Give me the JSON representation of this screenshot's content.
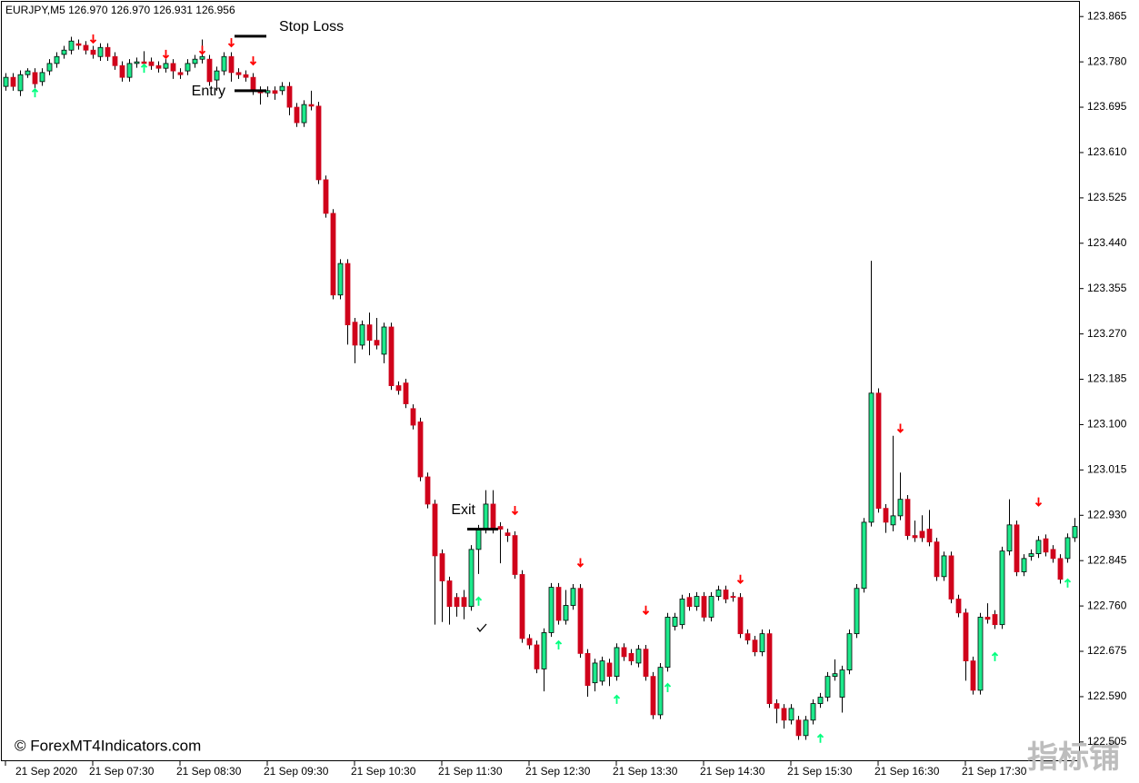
{
  "chart_data": {
    "type": "candlestick",
    "header": "EURJPY,M5  126.970 126.970 126.931 126.956",
    "watermark": "© ForexMT4Indicators.com",
    "watermark_cn": "指标铺",
    "up_color": "#1de98b",
    "down_color": "#d0021b",
    "wick_color": "#000000",
    "buy_color": "#00ff7f",
    "sell_color": "#ff0000",
    "level_color": "#000000",
    "ylim": [
      122.469,
      123.896
    ],
    "yticks": [
      123.865,
      {
        "value": 123.78,
        "label": "123.780"
      },
      123.695,
      {
        "value": 123.61,
        "label": "123.610"
      },
      123.525,
      {
        "value": 123.44,
        "label": "123.440"
      },
      123.355,
      {
        "value": 123.27,
        "label": "123.270"
      },
      123.185,
      {
        "value": 123.1,
        "label": "123.100"
      },
      123.015,
      {
        "value": 122.93,
        "label": "122.930"
      },
      122.845,
      {
        "value": 122.76,
        "label": "122.760"
      },
      122.675,
      {
        "value": 122.59,
        "label": "122.590"
      },
      122.505
    ],
    "xticks": [
      {
        "value": 0,
        "label": "21 Sep 2020"
      },
      {
        "value": 12,
        "label": "21 Sep 07:30"
      },
      {
        "value": 24,
        "label": "21 Sep 08:30"
      },
      {
        "value": 36,
        "label": "21 Sep 09:30"
      },
      {
        "value": 48,
        "label": "21 Sep 10:30"
      },
      {
        "value": 60,
        "label": "21 Sep 11:30"
      },
      {
        "value": 72,
        "label": "21 Sep 12:30"
      },
      {
        "value": 84,
        "label": "21 Sep 13:30"
      },
      {
        "value": 96,
        "label": "21 Sep 14:30"
      },
      {
        "value": 108,
        "label": "21 Sep 15:30"
      },
      {
        "value": 120,
        "label": "21 Sep 16:30"
      },
      {
        "value": 132,
        "label": "21 Sep 17:30"
      }
    ],
    "ohlc": [
      [
        123.734,
        123.759,
        123.726,
        123.751
      ],
      [
        123.751,
        123.759,
        123.726,
        123.734
      ],
      [
        123.726,
        123.764,
        123.716,
        123.756
      ],
      [
        123.756,
        123.768,
        123.75,
        123.763
      ],
      [
        123.76,
        123.768,
        123.731,
        123.739
      ],
      [
        123.743,
        123.768,
        123.735,
        123.76
      ],
      [
        123.763,
        123.785,
        123.755,
        123.777
      ],
      [
        123.777,
        123.798,
        123.769,
        123.79
      ],
      [
        123.794,
        123.81,
        123.786,
        123.802
      ],
      [
        123.802,
        123.827,
        123.794,
        123.819
      ],
      [
        123.814,
        123.822,
        123.803,
        123.811
      ],
      [
        123.811,
        123.819,
        123.794,
        123.802
      ],
      [
        123.802,
        123.81,
        123.786,
        123.794
      ],
      [
        123.79,
        123.815,
        123.782,
        123.807
      ],
      [
        123.807,
        123.815,
        123.782,
        123.79
      ],
      [
        123.79,
        123.798,
        123.765,
        123.773
      ],
      [
        123.773,
        123.781,
        123.743,
        123.751
      ],
      [
        123.751,
        123.785,
        123.743,
        123.777
      ],
      [
        123.777,
        123.788,
        123.769,
        123.78
      ],
      [
        123.78,
        123.8,
        123.769,
        123.777
      ],
      [
        123.78,
        123.788,
        123.765,
        123.773
      ],
      [
        123.773,
        123.781,
        123.76,
        123.768
      ],
      [
        123.768,
        123.785,
        123.76,
        123.777
      ],
      [
        123.777,
        123.785,
        123.748,
        123.763
      ],
      [
        123.76,
        123.768,
        123.748,
        123.756
      ],
      [
        123.763,
        123.785,
        123.755,
        123.777
      ],
      [
        123.777,
        123.793,
        123.769,
        123.785
      ],
      [
        123.785,
        123.822,
        123.777,
        123.79
      ],
      [
        123.785,
        123.793,
        123.735,
        123.743
      ],
      [
        123.746,
        123.771,
        123.726,
        123.763
      ],
      [
        123.763,
        123.798,
        123.755,
        123.79
      ],
      [
        123.79,
        123.798,
        123.743,
        123.76
      ],
      [
        123.76,
        123.768,
        123.748,
        123.756
      ],
      [
        123.756,
        123.764,
        123.743,
        123.751
      ],
      [
        123.751,
        123.759,
        123.718,
        123.726
      ],
      [
        123.726,
        123.734,
        123.7,
        123.722
      ],
      [
        123.722,
        123.734,
        123.714,
        123.726
      ],
      [
        123.726,
        123.734,
        123.709,
        123.721
      ],
      [
        123.726,
        123.742,
        123.718,
        123.734
      ],
      [
        123.734,
        123.742,
        123.68,
        123.695
      ],
      [
        123.695,
        123.703,
        123.658,
        123.666
      ],
      [
        123.666,
        123.708,
        123.658,
        123.7
      ],
      [
        123.7,
        123.726,
        123.689,
        123.697
      ],
      [
        123.697,
        123.705,
        123.551,
        123.559
      ],
      [
        123.559,
        123.567,
        123.488,
        123.496
      ],
      [
        123.496,
        123.504,
        123.335,
        123.343
      ],
      [
        123.343,
        123.41,
        123.335,
        123.402
      ],
      [
        123.402,
        123.41,
        123.25,
        123.287
      ],
      [
        123.292,
        123.3,
        123.215,
        123.249
      ],
      [
        123.249,
        123.295,
        123.241,
        123.287
      ],
      [
        123.287,
        123.31,
        123.23,
        123.258
      ],
      [
        123.258,
        123.3,
        123.241,
        123.249
      ],
      [
        123.232,
        123.291,
        123.215,
        123.283
      ],
      [
        123.283,
        123.291,
        123.165,
        123.173
      ],
      [
        123.173,
        123.181,
        123.156,
        123.164
      ],
      [
        123.178,
        123.186,
        123.131,
        123.139
      ],
      [
        123.13,
        123.138,
        123.091,
        123.099
      ],
      [
        123.105,
        123.113,
        122.994,
        123.002
      ],
      [
        123.002,
        123.01,
        122.943,
        122.951
      ],
      [
        122.951,
        122.959,
        122.725,
        122.854
      ],
      [
        122.858,
        122.866,
        122.73,
        122.807
      ],
      [
        122.807,
        122.815,
        122.725,
        122.759
      ],
      [
        122.776,
        122.784,
        122.74,
        122.759
      ],
      [
        122.776,
        122.79,
        122.735,
        122.759
      ],
      [
        122.759,
        122.874,
        122.751,
        122.866
      ],
      [
        122.866,
        122.912,
        122.82,
        122.904
      ],
      [
        122.904,
        122.977,
        122.896,
        122.951
      ],
      [
        122.951,
        122.977,
        122.896,
        122.904
      ],
      [
        122.909,
        122.917,
        122.84,
        122.904
      ],
      [
        122.897,
        122.905,
        122.88,
        122.892
      ],
      [
        122.892,
        122.9,
        122.811,
        122.819
      ],
      [
        122.819,
        122.827,
        122.691,
        122.699
      ],
      [
        122.699,
        122.707,
        122.679,
        122.687
      ],
      [
        122.687,
        122.695,
        122.634,
        122.642
      ],
      [
        122.642,
        122.718,
        122.6,
        122.71
      ],
      [
        122.71,
        122.803,
        122.702,
        122.795
      ],
      [
        122.795,
        122.803,
        122.725,
        122.733
      ],
      [
        122.733,
        122.79,
        122.725,
        122.761
      ],
      [
        122.761,
        122.801,
        122.753,
        122.793
      ],
      [
        122.793,
        122.801,
        122.663,
        122.671
      ],
      [
        122.671,
        122.679,
        122.59,
        122.611
      ],
      [
        122.616,
        122.661,
        122.6,
        122.653
      ],
      [
        122.619,
        122.665,
        122.611,
        122.657
      ],
      [
        122.653,
        122.661,
        122.61,
        122.628
      ],
      [
        122.628,
        122.69,
        122.62,
        122.682
      ],
      [
        122.682,
        122.69,
        122.657,
        122.665
      ],
      [
        122.671,
        122.679,
        122.649,
        122.657
      ],
      [
        122.653,
        122.687,
        122.645,
        122.679
      ],
      [
        122.679,
        122.687,
        122.62,
        122.628
      ],
      [
        122.628,
        122.636,
        122.548,
        122.556
      ],
      [
        122.556,
        122.653,
        122.548,
        122.645
      ],
      [
        122.645,
        122.747,
        122.637,
        122.739
      ],
      [
        122.722,
        122.747,
        122.714,
        122.739
      ],
      [
        122.725,
        122.781,
        122.717,
        122.773
      ],
      [
        122.776,
        122.784,
        122.751,
        122.759
      ],
      [
        122.759,
        122.786,
        122.751,
        122.778
      ],
      [
        122.778,
        122.786,
        122.731,
        122.739
      ],
      [
        122.739,
        122.786,
        122.731,
        122.778
      ],
      [
        122.778,
        122.798,
        122.77,
        122.79
      ],
      [
        122.79,
        122.798,
        122.765,
        122.773
      ],
      [
        122.778,
        122.786,
        122.768,
        122.776
      ],
      [
        122.776,
        122.784,
        122.7,
        122.708
      ],
      [
        122.708,
        122.716,
        122.688,
        122.696
      ],
      [
        122.696,
        122.704,
        122.666,
        122.674
      ],
      [
        122.674,
        122.716,
        122.666,
        122.708
      ],
      [
        122.708,
        122.716,
        122.569,
        122.577
      ],
      [
        122.577,
        122.585,
        122.54,
        122.568
      ],
      [
        122.568,
        122.576,
        122.53,
        122.546
      ],
      [
        122.546,
        122.576,
        122.538,
        122.568
      ],
      [
        122.546,
        122.554,
        122.509,
        122.517
      ],
      [
        122.517,
        122.554,
        122.509,
        122.546
      ],
      [
        122.546,
        122.585,
        122.538,
        122.577
      ],
      [
        122.577,
        122.597,
        122.569,
        122.589
      ],
      [
        122.589,
        122.636,
        122.581,
        122.628
      ],
      [
        122.628,
        122.66,
        122.62,
        122.633
      ],
      [
        122.589,
        122.648,
        122.56,
        122.64
      ],
      [
        122.64,
        122.716,
        122.632,
        122.708
      ],
      [
        122.708,
        122.801,
        122.7,
        122.793
      ],
      [
        122.793,
        122.925,
        122.785,
        122.917
      ],
      [
        122.917,
        123.407,
        122.909,
        123.159
      ],
      [
        123.159,
        123.168,
        122.935,
        122.943
      ],
      [
        122.943,
        122.951,
        122.897,
        122.917
      ],
      [
        122.912,
        123.079,
        122.9,
        122.929
      ],
      [
        122.929,
        123.01,
        122.921,
        122.96
      ],
      [
        122.96,
        122.968,
        122.884,
        122.892
      ],
      [
        122.892,
        122.92,
        122.88,
        122.888
      ],
      [
        122.9,
        122.93,
        122.88,
        122.888
      ],
      [
        122.904,
        122.94,
        122.872,
        122.88
      ],
      [
        122.88,
        122.888,
        122.807,
        122.815
      ],
      [
        122.815,
        122.862,
        122.807,
        122.854
      ],
      [
        122.854,
        122.862,
        122.765,
        122.773
      ],
      [
        122.773,
        122.781,
        122.739,
        122.747
      ],
      [
        122.747,
        122.755,
        122.62,
        122.657
      ],
      [
        122.657,
        122.665,
        122.594,
        122.602
      ],
      [
        122.602,
        122.747,
        122.594,
        122.739
      ],
      [
        122.739,
        122.765,
        122.727,
        122.735
      ],
      [
        122.744,
        122.752,
        122.717,
        122.725
      ],
      [
        122.725,
        122.871,
        122.717,
        122.863
      ],
      [
        122.863,
        122.96,
        122.855,
        122.912
      ],
      [
        122.912,
        122.92,
        122.816,
        122.824
      ],
      [
        122.824,
        122.857,
        122.816,
        122.849
      ],
      [
        122.853,
        122.866,
        122.845,
        122.858
      ],
      [
        122.858,
        122.891,
        122.85,
        122.883
      ],
      [
        122.886,
        122.894,
        122.853,
        122.861
      ],
      [
        122.866,
        122.874,
        122.841,
        122.849
      ],
      [
        122.849,
        122.857,
        122.802,
        122.81
      ],
      [
        122.849,
        122.896,
        122.841,
        122.888
      ],
      [
        122.888,
        122.925,
        122.88,
        122.909
      ]
    ],
    "sell_signals": [
      {
        "index": 12,
        "price": 123.823
      },
      {
        "index": 22,
        "price": 123.794
      },
      {
        "index": 27,
        "price": 123.802
      },
      {
        "index": 31,
        "price": 123.816
      },
      {
        "index": 34,
        "price": 123.782
      },
      {
        "index": 70,
        "price": 122.939
      },
      {
        "index": 79,
        "price": 122.841
      },
      {
        "index": 88,
        "price": 122.752
      },
      {
        "index": 101,
        "price": 122.81
      },
      {
        "index": 123,
        "price": 123.093
      },
      {
        "index": 142,
        "price": 122.955
      }
    ],
    "buy_signals": [
      {
        "index": 4,
        "price": 123.722
      },
      {
        "index": 19,
        "price": 123.768
      },
      {
        "index": 65,
        "price": 122.769
      },
      {
        "index": 76,
        "price": 122.687
      },
      {
        "index": 84,
        "price": 122.585
      },
      {
        "index": 91,
        "price": 122.607
      },
      {
        "index": 112,
        "price": 122.512
      },
      {
        "index": 136,
        "price": 122.665
      },
      {
        "index": 146,
        "price": 122.803
      }
    ],
    "levels": [
      {
        "label": "Stop Loss",
        "price": 123.828
      },
      {
        "label": "Entry",
        "price": 123.726
      },
      {
        "label": "Exit",
        "price": 122.904
      }
    ]
  }
}
